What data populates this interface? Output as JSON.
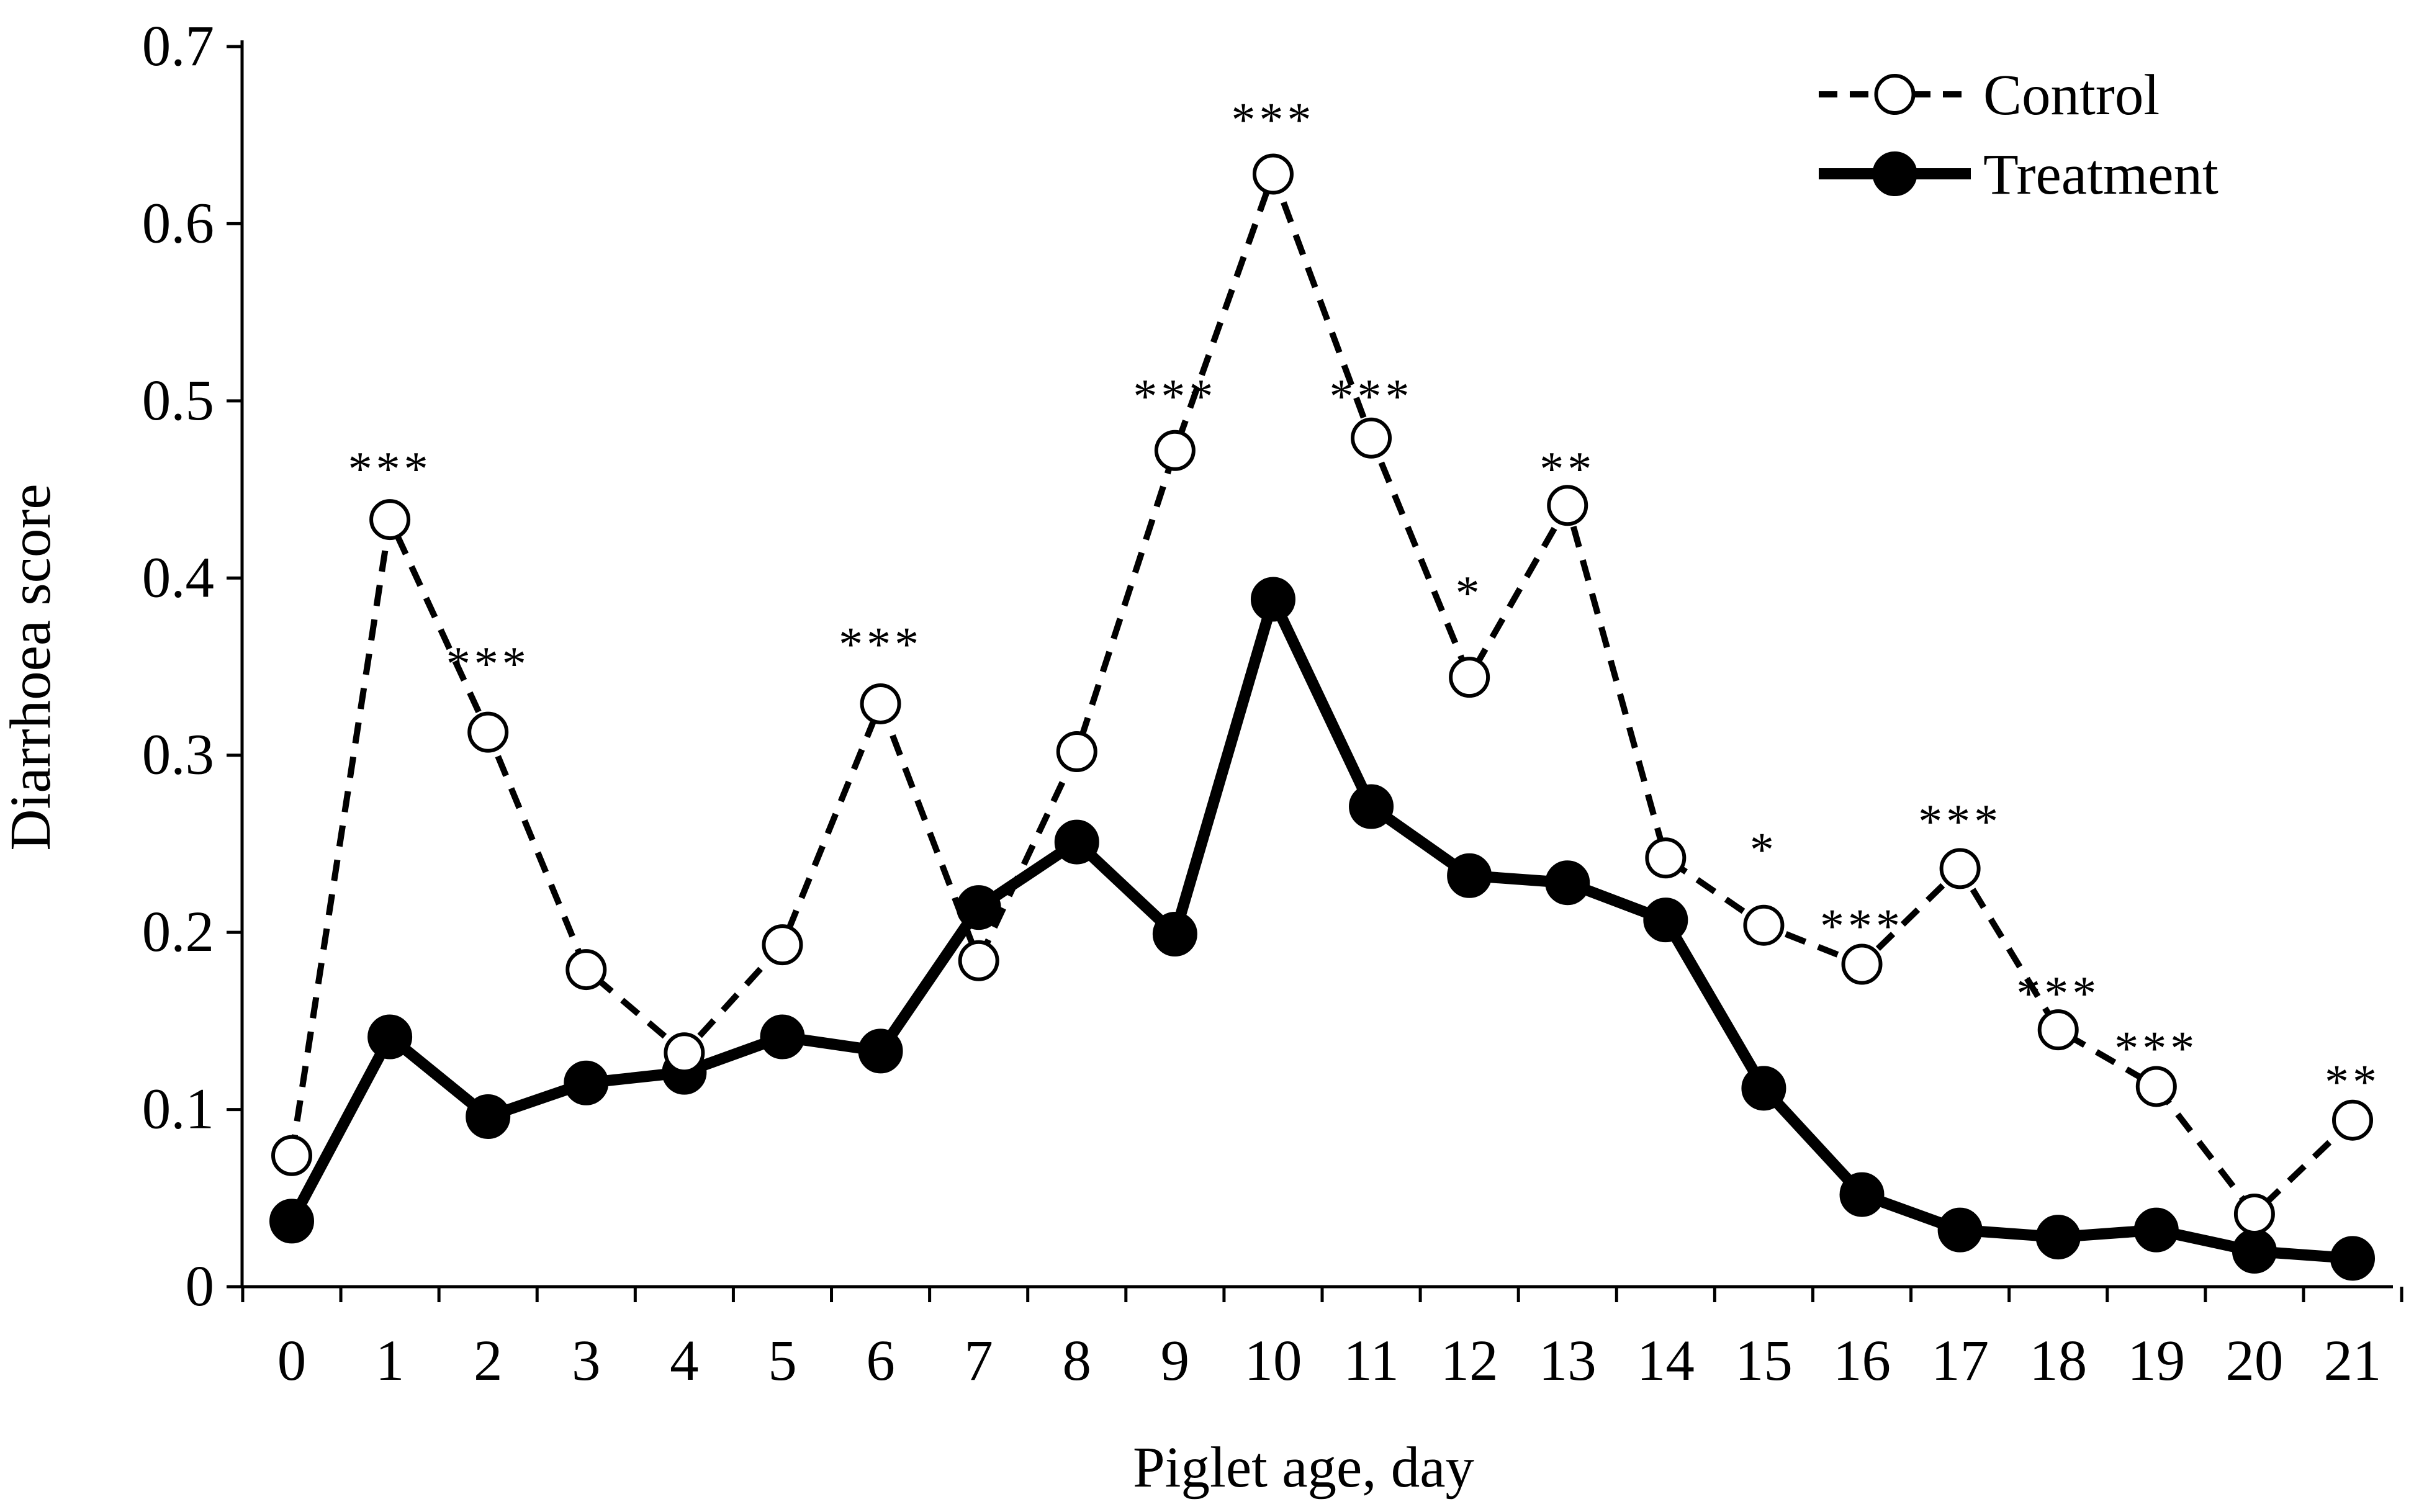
{
  "chart_data": {
    "type": "line",
    "xlabel": "Piglet age, day",
    "ylabel": "Diarrhoea score",
    "ylim": [
      0,
      0.7
    ],
    "yticks": [
      "0",
      "0.1",
      "0.2",
      "0.3",
      "0.4",
      "0.5",
      "0.6",
      "0.7"
    ],
    "yticks_values": [
      0,
      0.1,
      0.2,
      0.3,
      0.4,
      0.5,
      0.6,
      0.7
    ],
    "x": [
      0,
      1,
      2,
      3,
      4,
      5,
      6,
      7,
      8,
      9,
      10,
      11,
      12,
      13,
      14,
      15,
      16,
      17,
      18,
      19,
      20,
      21
    ],
    "xticks": [
      "0",
      "1",
      "2",
      "3",
      "4",
      "5",
      "6",
      "7",
      "8",
      "9",
      "10",
      "11",
      "12",
      "13",
      "14",
      "15",
      "16",
      "17",
      "18",
      "19",
      "20",
      "21"
    ],
    "legend_position": "top-right",
    "grid": false,
    "series": [
      {
        "name": "Control",
        "style": "dashed-open-circle",
        "values": [
          0.074,
          0.433,
          0.313,
          0.179,
          0.132,
          0.193,
          0.329,
          0.184,
          0.302,
          0.472,
          0.628,
          0.479,
          0.344,
          0.441,
          0.242,
          0.204,
          0.182,
          0.236,
          0.145,
          0.113,
          0.041,
          0.094
        ]
      },
      {
        "name": "Treatment",
        "style": "solid-filled-circle",
        "values": [
          0.037,
          0.141,
          0.096,
          0.115,
          0.121,
          0.141,
          0.133,
          0.214,
          0.251,
          0.199,
          0.388,
          0.271,
          0.232,
          0.228,
          0.207,
          0.112,
          0.052,
          0.032,
          0.028,
          0.032,
          0.02,
          0.016
        ]
      }
    ],
    "annotations": [
      {
        "x": 1,
        "text": "***",
        "y": 0.463
      },
      {
        "x": 2,
        "text": "***",
        "y": 0.353
      },
      {
        "x": 6,
        "text": "***",
        "y": 0.364
      },
      {
        "x": 9,
        "text": "***",
        "y": 0.504
      },
      {
        "x": 10,
        "text": "***",
        "y": 0.66
      },
      {
        "x": 11,
        "text": "***",
        "y": 0.504
      },
      {
        "x": 12,
        "text": "*",
        "y": 0.393
      },
      {
        "x": 13,
        "text": "**",
        "y": 0.463
      },
      {
        "x": 15,
        "text": "*",
        "y": 0.248
      },
      {
        "x": 16,
        "text": "***",
        "y": 0.205
      },
      {
        "x": 17,
        "text": "***",
        "y": 0.264
      },
      {
        "x": 18,
        "text": "***",
        "y": 0.167
      },
      {
        "x": 19,
        "text": "***",
        "y": 0.136
      },
      {
        "x": 21,
        "text": "**",
        "y": 0.117
      }
    ]
  }
}
